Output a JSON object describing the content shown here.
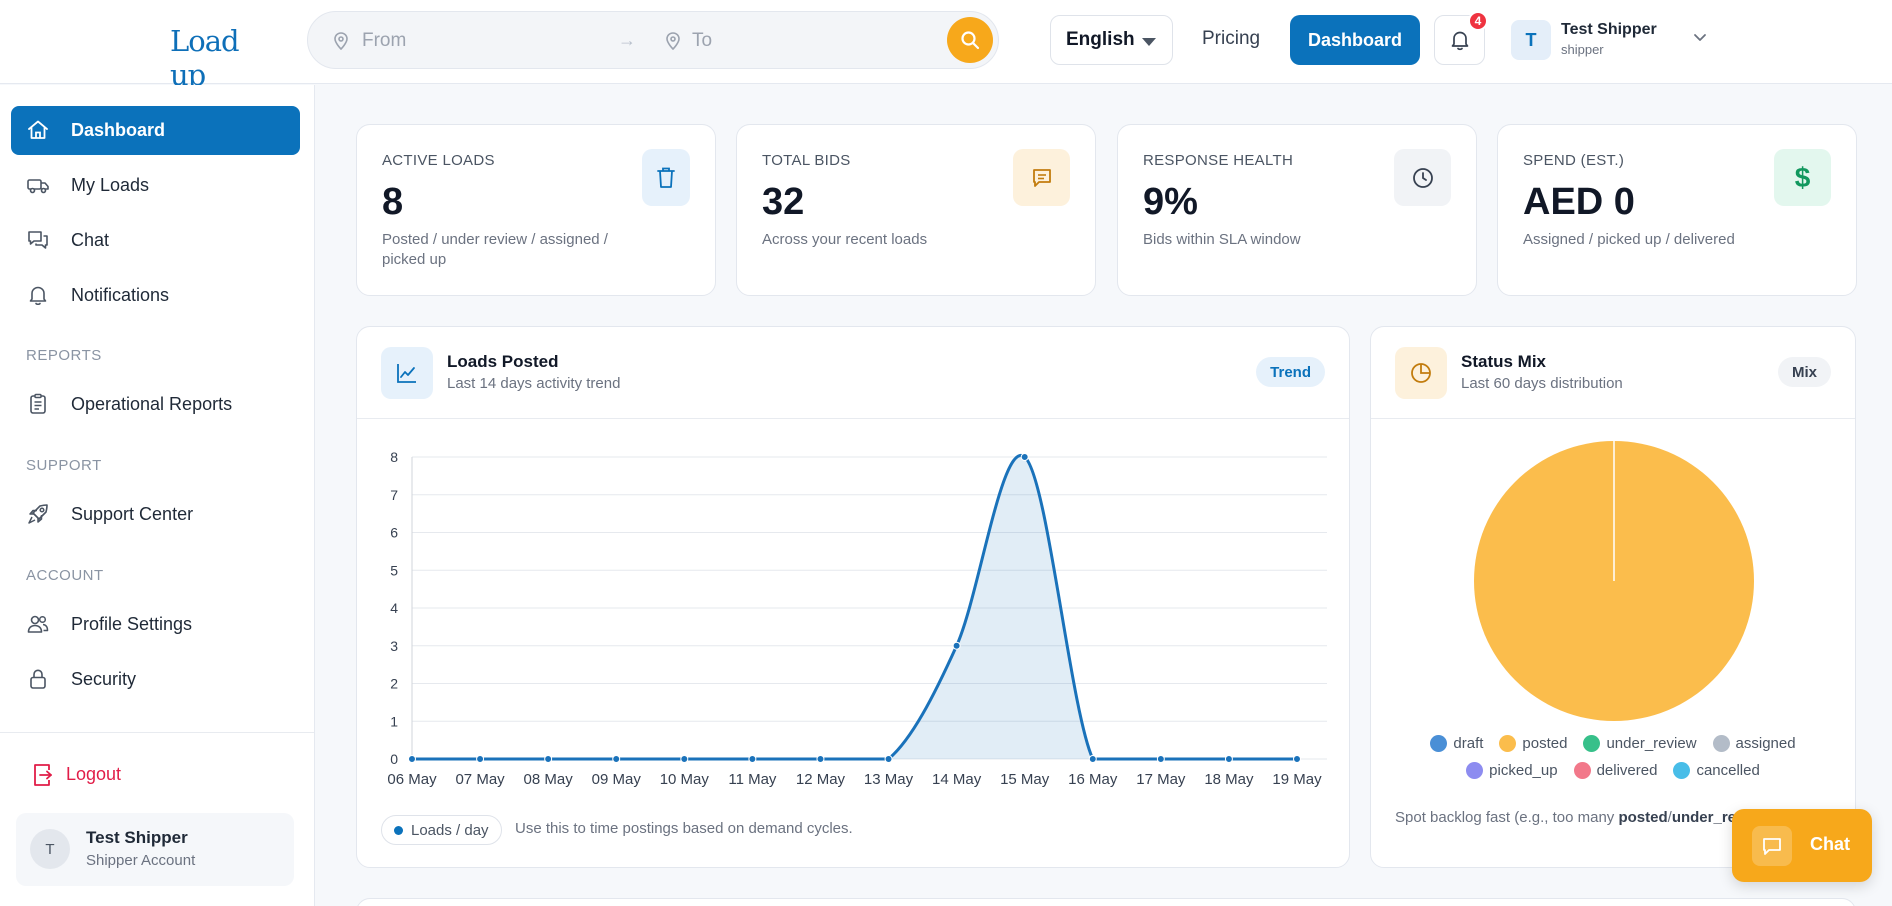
{
  "header": {
    "logo": "Load up",
    "search": {
      "from_placeholder": "From",
      "to_placeholder": "To"
    },
    "language": "English",
    "pricing": "Pricing",
    "dashboard": "Dashboard",
    "notifications_count": "4",
    "user": {
      "initial": "T",
      "name": "Test Shipper",
      "role": "shipper"
    }
  },
  "sidebar": {
    "items": [
      {
        "label": "Dashboard",
        "icon": "home-icon"
      },
      {
        "label": "My Loads",
        "icon": "truck-icon"
      },
      {
        "label": "Chat",
        "icon": "chat-icon"
      },
      {
        "label": "Notifications",
        "icon": "bell-icon"
      }
    ],
    "sections": {
      "reports": {
        "title": "REPORTS",
        "items": [
          {
            "label": "Operational Reports",
            "icon": "clipboard-icon"
          }
        ]
      },
      "support": {
        "title": "SUPPORT",
        "items": [
          {
            "label": "Support Center",
            "icon": "rocket-icon"
          }
        ]
      },
      "account": {
        "title": "ACCOUNT",
        "items": [
          {
            "label": "Profile Settings",
            "icon": "users-icon"
          },
          {
            "label": "Security",
            "icon": "lock-icon"
          }
        ]
      }
    },
    "logout": "Logout",
    "user": {
      "initial": "T",
      "name": "Test Shipper",
      "role": "Shipper Account"
    }
  },
  "stats": [
    {
      "title": "ACTIVE LOADS",
      "value": "8",
      "sub": "Posted / under review / assigned / picked up",
      "icon": "trash-icon",
      "icon_bg": "#e6f1fb",
      "icon_color": "#0b72bb"
    },
    {
      "title": "TOTAL BIDS",
      "value": "32",
      "sub": "Across your recent loads",
      "icon": "message-icon",
      "icon_bg": "#fdf1dc",
      "icon_color": "#c27c0e"
    },
    {
      "title": "RESPONSE HEALTH",
      "value": "9%",
      "sub": "Bids within SLA window",
      "icon": "clock-icon",
      "icon_bg": "#f1f3f6",
      "icon_color": "#374151"
    },
    {
      "title": "SPEND (EST.)",
      "value": "AED 0",
      "sub": "Assigned / picked up / delivered",
      "icon": "dollar-icon",
      "icon_bg": "#e3f7ee",
      "icon_color": "#12985e"
    }
  ],
  "loads_panel": {
    "title": "Loads Posted",
    "subtitle": "Last 14 days activity trend",
    "pill": "Trend",
    "legend": "Loads / day",
    "note": "Use this to time postings based on demand cycles."
  },
  "mix_panel": {
    "title": "Status Mix",
    "subtitle": "Last 60 days distribution",
    "pill": "Mix",
    "note_prefix": "Spot backlog fast (e.g., too many ",
    "note_bold1": "posted",
    "note_sep": "/",
    "note_bold2": "under_re"
  },
  "chat_fab": "Chat",
  "chart_data": [
    {
      "type": "area",
      "categories": [
        "06 May",
        "07 May",
        "08 May",
        "09 May",
        "10 May",
        "11 May",
        "12 May",
        "13 May",
        "14 May",
        "15 May",
        "16 May",
        "17 May",
        "18 May",
        "19 May"
      ],
      "series": [
        {
          "name": "Loads / day",
          "values": [
            0,
            0,
            0,
            0,
            0,
            0,
            0,
            0,
            3,
            8,
            0,
            0,
            0,
            0
          ]
        }
      ],
      "ylim": [
        0,
        8
      ],
      "yticks": [
        "0",
        "1",
        "2",
        "3",
        "4",
        "5",
        "6",
        "7",
        "8"
      ],
      "grid": true,
      "color": "#1a72ba"
    },
    {
      "type": "pie",
      "labels": [
        "draft",
        "posted",
        "under_review",
        "assigned",
        "picked_up",
        "delivered",
        "cancelled"
      ],
      "values": [
        0,
        1,
        0,
        0,
        0,
        0,
        0
      ],
      "colors": [
        "#4a8fd6",
        "#fbbd4c",
        "#37c08a",
        "#b3bcc8",
        "#8d8cf0",
        "#f2788a",
        "#48bde8"
      ]
    }
  ]
}
